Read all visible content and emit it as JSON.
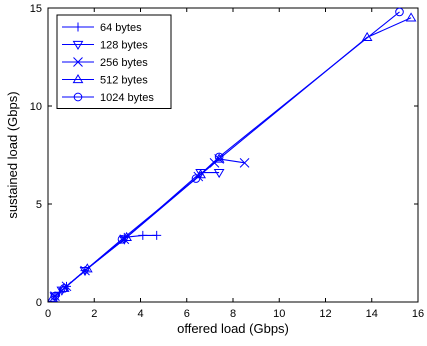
{
  "chart_data": {
    "type": "line",
    "title": "",
    "xlabel": "offered load (Gbps)",
    "ylabel": "sustained load (Gbps)",
    "xlim": [
      0,
      16
    ],
    "ylim": [
      0,
      15
    ],
    "xticks": [
      0,
      2,
      4,
      6,
      8,
      10,
      12,
      14,
      16
    ],
    "yticks": [
      0,
      5,
      10,
      15
    ],
    "xtick_labels": [
      "0",
      "2",
      "4",
      "6",
      "8",
      "10",
      "12",
      "14",
      "16"
    ],
    "ytick_labels": [
      "0",
      "5",
      "10",
      "15"
    ],
    "grid": false,
    "legend_position": "top-left",
    "line_color": "#0000ff",
    "series": [
      {
        "name": "64 bytes",
        "marker": "plus",
        "points": [
          [
            0.3,
            0.3
          ],
          [
            0.5,
            0.5
          ],
          [
            0.8,
            0.8
          ],
          [
            1.6,
            1.6
          ],
          [
            3.3,
            3.3
          ],
          [
            4.1,
            3.4
          ],
          [
            4.7,
            3.4
          ]
        ]
      },
      {
        "name": "128 bytes",
        "marker": "triangle-down",
        "points": [
          [
            0.3,
            0.3
          ],
          [
            0.6,
            0.6
          ],
          [
            1.6,
            1.6
          ],
          [
            3.3,
            3.2
          ],
          [
            6.6,
            6.6
          ],
          [
            7.4,
            6.6
          ]
        ]
      },
      {
        "name": "256 bytes",
        "marker": "x",
        "points": [
          [
            0.3,
            0.3
          ],
          [
            0.8,
            0.8
          ],
          [
            1.6,
            1.6
          ],
          [
            3.3,
            3.2
          ],
          [
            6.5,
            6.4
          ],
          [
            7.2,
            7.1
          ],
          [
            7.4,
            7.3
          ],
          [
            8.5,
            7.1
          ]
        ]
      },
      {
        "name": "512 bytes",
        "marker": "triangle-up",
        "points": [
          [
            0.2,
            0.2
          ],
          [
            0.7,
            0.7
          ],
          [
            1.7,
            1.7
          ],
          [
            3.4,
            3.3
          ],
          [
            6.6,
            6.5
          ],
          [
            7.4,
            7.3
          ],
          [
            13.8,
            13.5
          ],
          [
            15.7,
            14.5
          ]
        ]
      },
      {
        "name": "1024 bytes",
        "marker": "circle",
        "points": [
          [
            0.3,
            0.3
          ],
          [
            0.7,
            0.7
          ],
          [
            3.2,
            3.2
          ],
          [
            6.4,
            6.3
          ],
          [
            7.4,
            7.4
          ],
          [
            15.2,
            14.8
          ]
        ]
      }
    ]
  }
}
